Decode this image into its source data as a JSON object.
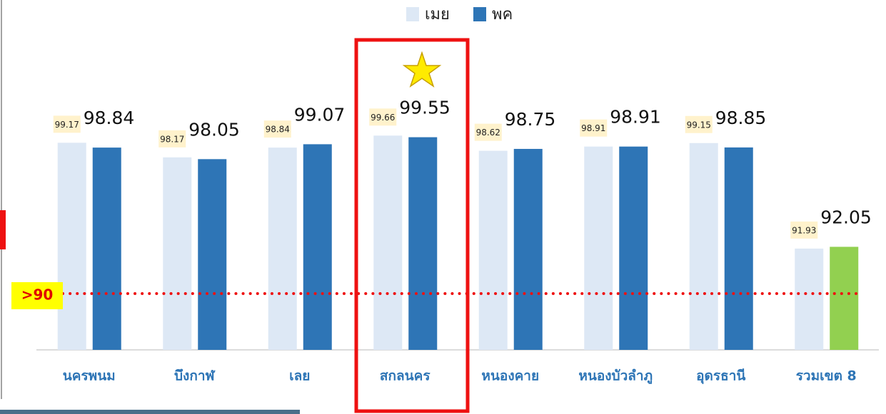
{
  "chart_data": {
    "type": "bar",
    "categories": [
      "นครพนม",
      "บึงกาฬ",
      "เลย",
      "สกลนคร",
      "หนองคาย",
      "หนองบัวลำภู",
      "อุดรธานี",
      "รวมเขต 8"
    ],
    "series": [
      {
        "name": "เมย",
        "color": "#dde8f5",
        "values": [
          99.17,
          98.17,
          98.84,
          99.66,
          98.62,
          98.91,
          99.15,
          91.93
        ]
      },
      {
        "name": "พค",
        "color": "#2e75b6",
        "colors": [
          "#2e75b6",
          "#2e75b6",
          "#2e75b6",
          "#2e75b6",
          "#2e75b6",
          "#2e75b6",
          "#2e75b6",
          "#92d050"
        ],
        "values": [
          98.84,
          98.05,
          99.07,
          99.55,
          98.75,
          98.91,
          98.85,
          92.05
        ]
      }
    ],
    "annotation": ">90",
    "ylim": [
      85,
      106.5
    ]
  }
}
